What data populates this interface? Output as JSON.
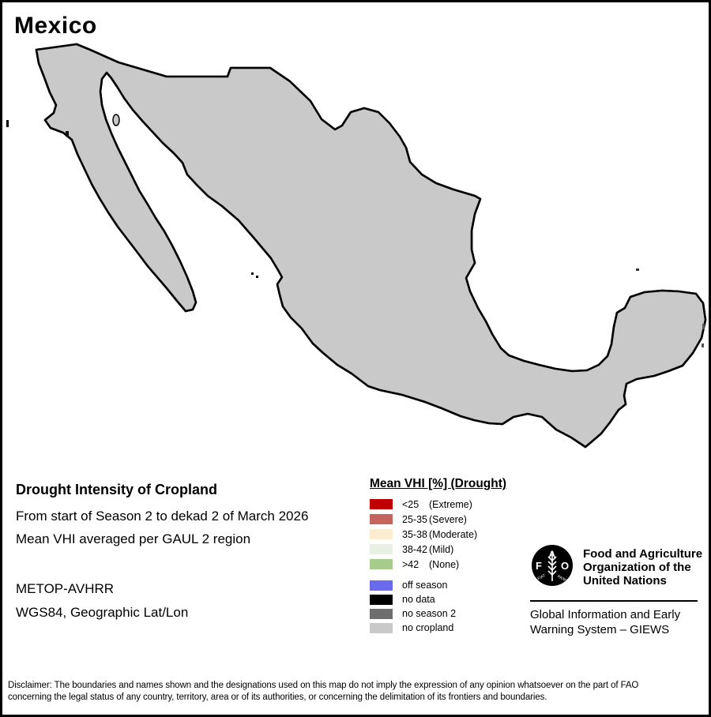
{
  "page": {
    "title": "Mexico"
  },
  "info": {
    "heading": "Drought Intensity of Cropland",
    "line1": "From start of Season 2 to dekad 2 of March 2026",
    "line2": "Mean VHI averaged per GAUL 2 region",
    "sensor": "METOP-AVHRR",
    "projection": "WGS84, Geographic Lat/Lon"
  },
  "legend": {
    "title": "Mean VHI [%] (Drought)",
    "classes": [
      {
        "range": "<25",
        "label": "(Extreme)",
        "color": "#c00000"
      },
      {
        "range": "25-35",
        "label": "(Severe)",
        "color": "#c66560"
      },
      {
        "range": "35-38",
        "label": "(Moderate)",
        "color": "#fcecd0"
      },
      {
        "range": "38-42",
        "label": "(Mild)",
        "color": "#e7f0e2"
      },
      {
        "range": ">42",
        "label": "(None)",
        "color": "#a5cc8c"
      }
    ],
    "extra": [
      {
        "label": "off season",
        "color": "#6a6af0"
      },
      {
        "label": "no data",
        "color": "#000000"
      },
      {
        "label": "no season 2",
        "color": "#6e6e6e"
      },
      {
        "label": "no cropland",
        "color": "#c9c9c9"
      }
    ]
  },
  "org": {
    "logo_text": "FAO",
    "logo_motto_left": "FIAT",
    "logo_motto_right": "PANIS",
    "name_lines": [
      "Food and Agriculture",
      "Organization of the",
      "United Nations"
    ],
    "giews_lines": [
      "Global Information and Early",
      "Warning System – GIEWS"
    ]
  },
  "disclaimer": {
    "line1": "Disclaimer: The boundaries and names shown and the designations used on this map do not imply the expression of any opinion whatsoever on the part of FAO",
    "line2": "concerning the legal status of any country, territory, area or of its authorities, or concerning the delimitation of its frontiers and boundaries."
  },
  "map": {
    "region": "Mexico",
    "land_color": "#c9c9c9",
    "sea_color": "#ffffff"
  }
}
